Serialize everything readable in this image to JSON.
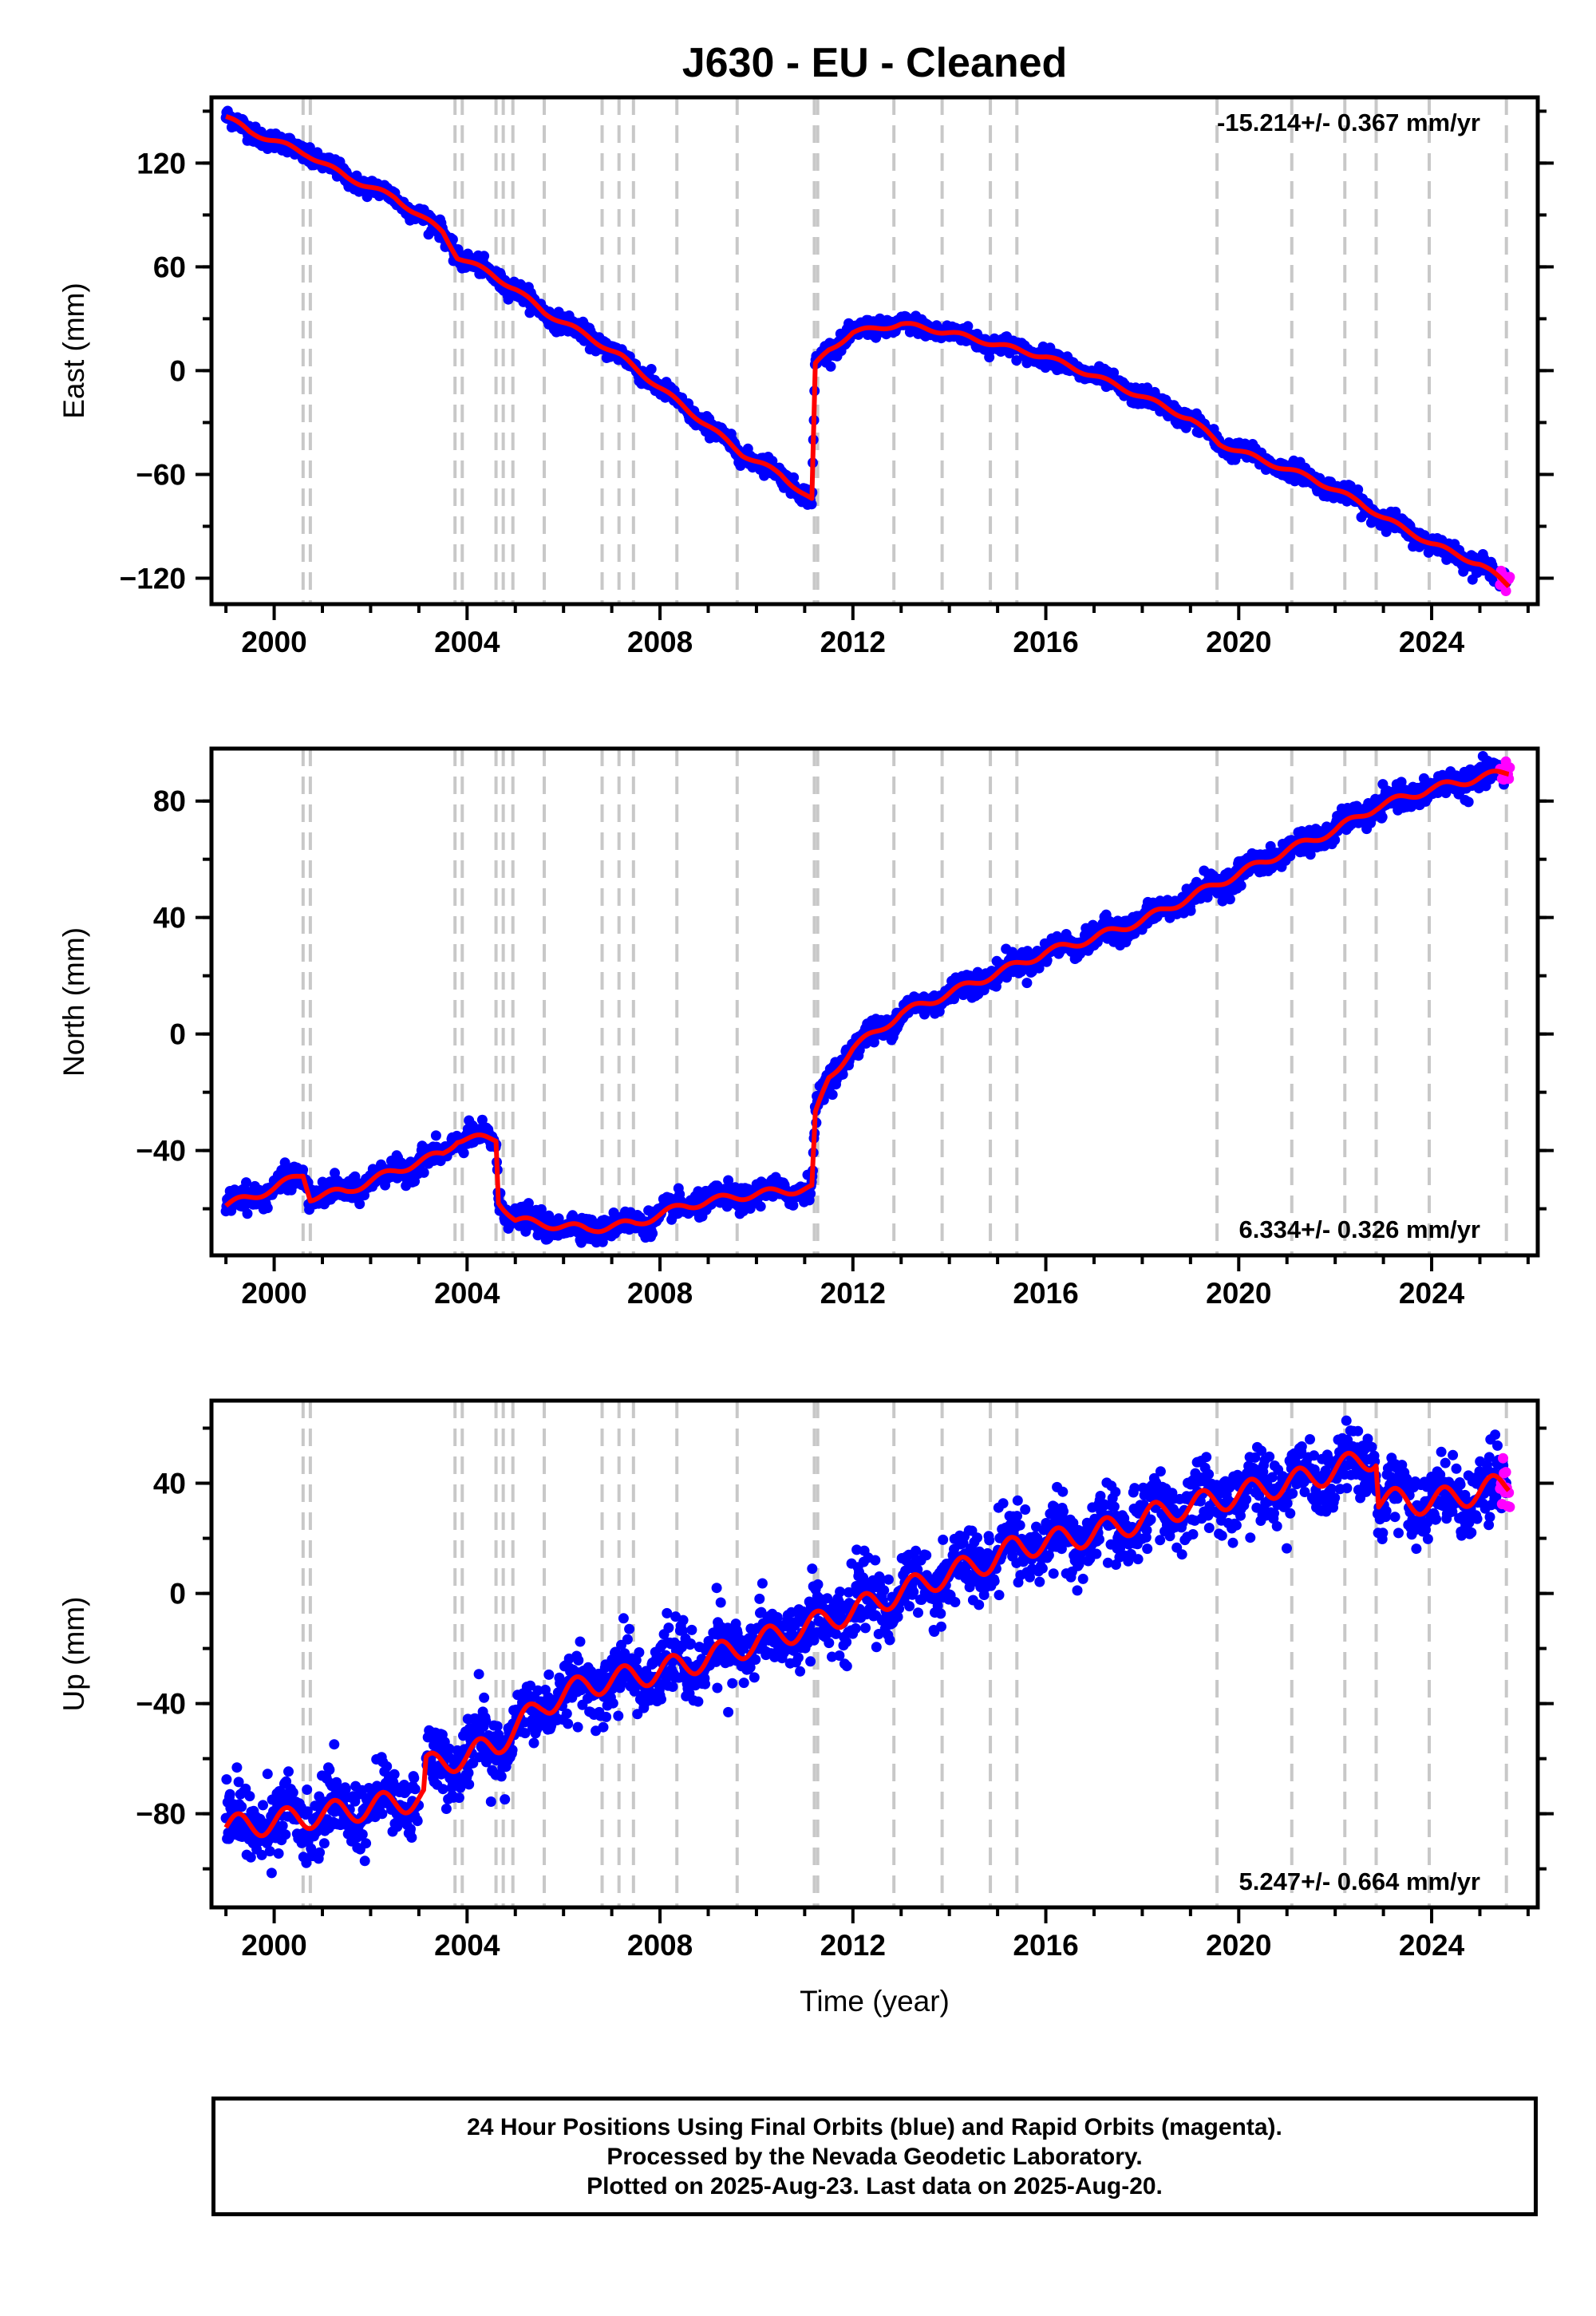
{
  "chart_data": {
    "title": "J630  - EU - Cleaned",
    "xlabel": "Time (year)",
    "xlim": [
      1998.7,
      2026.2
    ],
    "x_ticks": [
      2000,
      2004,
      2008,
      2012,
      2016,
      2020,
      2024
    ],
    "x_tick_labels": [
      "2000",
      "2004",
      "2008",
      "2012",
      "2016",
      "2020",
      "2024"
    ],
    "event_lines_years": [
      2000.6,
      2000.75,
      2003.75,
      2003.9,
      2004.6,
      2004.75,
      2004.95,
      2005.6,
      2006.8,
      2007.15,
      2007.45,
      2008.35,
      2009.6,
      2011.2,
      2011.27,
      2012.85,
      2013.85,
      2014.85,
      2015.4,
      2019.55,
      2021.1,
      2022.2,
      2022.85,
      2023.95,
      2025.55
    ],
    "legend": "none",
    "colors": {
      "final_orbits": "#0000ff",
      "rapid_orbits": "#ff00ff",
      "model": "#ff0000",
      "event_lines": "#c8c8c8"
    },
    "panels": [
      {
        "type": "scatter",
        "ylabel": "East (mm)",
        "ylim": [
          -135,
          158
        ],
        "y_ticks": [
          -120,
          -60,
          0,
          60,
          120
        ],
        "y_tick_labels": [
          "−120",
          "−60",
          "0",
          "60",
          "120"
        ],
        "rate_label": "-15.214+/- 0.367 mm/yr",
        "rate_position": "top-right",
        "scatter_sd": 2.5,
        "seasonal_amp": 1.5,
        "model": [
          [
            1999.0,
            147
          ],
          [
            1999.5,
            138
          ],
          [
            2000.0,
            133
          ],
          [
            2000.7,
            125
          ],
          [
            2001.5,
            112
          ],
          [
            2002.5,
            100
          ],
          [
            2003.5,
            80
          ],
          [
            2003.8,
            66
          ],
          [
            2004.5,
            56
          ],
          [
            2005.0,
            47
          ],
          [
            2005.6,
            34
          ],
          [
            2006.5,
            20
          ],
          [
            2007.2,
            8
          ],
          [
            2008.0,
            -10
          ],
          [
            2009.0,
            -32
          ],
          [
            2009.7,
            -48
          ],
          [
            2010.5,
            -60
          ],
          [
            2011.15,
            -75
          ],
          [
            2011.22,
            3
          ],
          [
            2011.5,
            12
          ],
          [
            2012.0,
            22
          ],
          [
            2013.0,
            27
          ],
          [
            2014.0,
            22
          ],
          [
            2015.0,
            15
          ],
          [
            2016.0,
            8
          ],
          [
            2017.0,
            -3
          ],
          [
            2018.0,
            -15
          ],
          [
            2019.0,
            -28
          ],
          [
            2019.6,
            -42
          ],
          [
            2020.5,
            -52
          ],
          [
            2021.5,
            -62
          ],
          [
            2022.5,
            -76
          ],
          [
            2023.0,
            -85
          ],
          [
            2024.0,
            -100
          ],
          [
            2025.0,
            -112
          ],
          [
            2025.6,
            -124
          ]
        ],
        "data_range": [
          1999.0,
          2025.55
        ],
        "rapid_range": [
          2025.42,
          2025.63
        ]
      },
      {
        "type": "scatter",
        "ylabel": "North (mm)",
        "ylim": [
          -76,
          98
        ],
        "y_ticks": [
          -40,
          0,
          40,
          80
        ],
        "y_tick_labels": [
          "−40",
          "0",
          "40",
          "80"
        ],
        "rate_label": "6.334+/- 0.326 mm/yr",
        "rate_position": "bottom-right",
        "scatter_sd": 2.0,
        "seasonal_amp": 1.5,
        "model": [
          [
            1999.0,
            -59
          ],
          [
            2000.0,
            -53
          ],
          [
            2000.6,
            -48
          ],
          [
            2000.75,
            -56
          ],
          [
            2001.5,
            -54
          ],
          [
            2002.5,
            -47
          ],
          [
            2003.5,
            -41
          ],
          [
            2003.8,
            -36
          ],
          [
            2004.6,
            -36
          ],
          [
            2004.65,
            -57
          ],
          [
            2005.0,
            -64
          ],
          [
            2006.5,
            -67
          ],
          [
            2007.5,
            -65
          ],
          [
            2008.5,
            -59
          ],
          [
            2009.5,
            -56
          ],
          [
            2010.5,
            -54
          ],
          [
            2011.15,
            -53
          ],
          [
            2011.22,
            -28
          ],
          [
            2011.5,
            -15
          ],
          [
            2012.0,
            -5
          ],
          [
            2013.0,
            7
          ],
          [
            2014.0,
            14
          ],
          [
            2015.0,
            21
          ],
          [
            2016.0,
            28
          ],
          [
            2017.0,
            33
          ],
          [
            2018.0,
            39
          ],
          [
            2019.0,
            47
          ],
          [
            2019.6,
            52
          ],
          [
            2020.0,
            55
          ],
          [
            2021.0,
            63
          ],
          [
            2022.0,
            70
          ],
          [
            2022.85,
            78
          ],
          [
            2023.95,
            84
          ],
          [
            2025.0,
            88
          ],
          [
            2025.6,
            90
          ]
        ],
        "data_range": [
          1999.0,
          2025.55
        ],
        "rapid_range": [
          2025.42,
          2025.63
        ]
      },
      {
        "type": "scatter",
        "ylabel": "Up (mm)",
        "ylim": [
          -114,
          70
        ],
        "y_ticks": [
          -80,
          -40,
          0,
          40
        ],
        "y_tick_labels": [
          "−80",
          "−40",
          "0",
          "40"
        ],
        "rate_label": "5.247+/- 0.664 mm/yr",
        "rate_position": "bottom-right",
        "scatter_sd": 6.0,
        "seasonal_amp": 5.0,
        "model": [
          [
            1999.0,
            -85
          ],
          [
            2000.0,
            -83
          ],
          [
            2000.7,
            -81
          ],
          [
            2001.5,
            -79
          ],
          [
            2002.5,
            -76
          ],
          [
            2003.1,
            -74
          ],
          [
            2003.15,
            -63
          ],
          [
            2004.0,
            -59
          ],
          [
            2004.6,
            -55
          ],
          [
            2005.6,
            -40
          ],
          [
            2006.5,
            -33
          ],
          [
            2007.5,
            -30
          ],
          [
            2008.5,
            -26
          ],
          [
            2009.6,
            -20
          ],
          [
            2010.5,
            -15
          ],
          [
            2011.25,
            -11
          ],
          [
            2012.5,
            -3
          ],
          [
            2013.8,
            6
          ],
          [
            2014.85,
            12
          ],
          [
            2015.4,
            17
          ],
          [
            2016.5,
            20
          ],
          [
            2017.5,
            24
          ],
          [
            2018.5,
            30
          ],
          [
            2019.55,
            34
          ],
          [
            2020.5,
            38
          ],
          [
            2021.5,
            42
          ],
          [
            2022.2,
            46
          ],
          [
            2022.85,
            50
          ],
          [
            2022.9,
            34
          ],
          [
            2023.95,
            33
          ],
          [
            2025.0,
            37
          ],
          [
            2025.6,
            40
          ]
        ],
        "data_range": [
          1999.0,
          2025.55
        ],
        "rapid_range": [
          2025.42,
          2025.63
        ]
      }
    ]
  },
  "caption": {
    "line1": "24 Hour Positions Using Final Orbits (blue) and Rapid Orbits (magenta).",
    "line2": "Processed by the Nevada Geodetic Laboratory.",
    "line3": "Plotted on 2025-Aug-23. Last data on 2025-Aug-20."
  }
}
